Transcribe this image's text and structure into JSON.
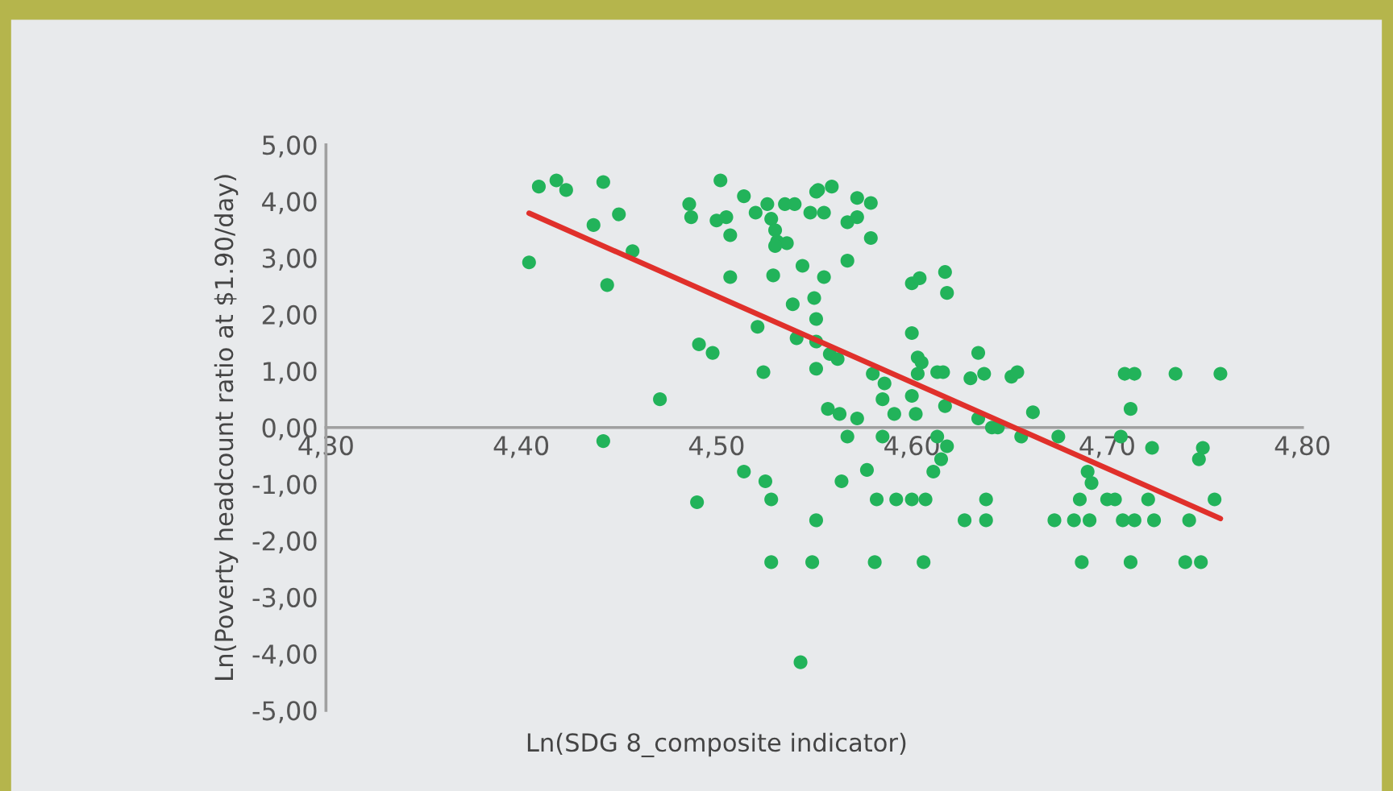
{
  "chart_data": {
    "type": "scatter",
    "xlabel": "Ln(SDG 8_composite indicator)",
    "ylabel": "Ln(Poverty headcount ratio at $1.90/day)",
    "xlim": [
      4.3,
      4.8
    ],
    "ylim": [
      -5,
      5
    ],
    "xticks": [
      {
        "value": 4.3,
        "label": "4,30"
      },
      {
        "value": 4.4,
        "label": "4,40"
      },
      {
        "value": 4.5,
        "label": "4,50"
      },
      {
        "value": 4.6,
        "label": "4,60"
      },
      {
        "value": 4.7,
        "label": "4,70"
      },
      {
        "value": 4.8,
        "label": "4,80"
      }
    ],
    "yticks": [
      {
        "value": -5,
        "label": "-5,00"
      },
      {
        "value": -4,
        "label": "-4,00"
      },
      {
        "value": -3,
        "label": "-3,00"
      },
      {
        "value": -2,
        "label": "-2,00"
      },
      {
        "value": -1,
        "label": "-1,00"
      },
      {
        "value": 0,
        "label": "0,00"
      },
      {
        "value": 1,
        "label": "1,00"
      },
      {
        "value": 2,
        "label": "2,00"
      },
      {
        "value": 3,
        "label": "3,00"
      },
      {
        "value": 4,
        "label": "4,00"
      },
      {
        "value": 5,
        "label": "5,00"
      }
    ],
    "grid": false,
    "legend": false,
    "marker": "circle",
    "series": [
      {
        "color": "#22b35a",
        "x": [
          4.409,
          4.418,
          4.423,
          4.442,
          4.45,
          4.437,
          4.457,
          4.404,
          4.444,
          4.502,
          4.486,
          4.487,
          4.5,
          4.505,
          4.514,
          4.507,
          4.52,
          4.526,
          4.535,
          4.54,
          4.528,
          4.53,
          4.531,
          4.536,
          4.53,
          4.548,
          4.551,
          4.507,
          4.529,
          4.544,
          4.539,
          4.55,
          4.551,
          4.521,
          4.541,
          4.551,
          4.491,
          4.498,
          4.524,
          4.551,
          4.471,
          4.442,
          4.49,
          4.514,
          4.525,
          4.528,
          4.528,
          4.549,
          4.543,
          4.552,
          4.559,
          4.555,
          4.572,
          4.579,
          4.567,
          4.572,
          4.579,
          4.567,
          4.555,
          4.558,
          4.562,
          4.6,
          4.604,
          4.617,
          4.618,
          4.6,
          4.603,
          4.605,
          4.603,
          4.613,
          4.616,
          4.58,
          4.586,
          4.585,
          4.6,
          4.602,
          4.617,
          4.591,
          4.557,
          4.563,
          4.572,
          4.567,
          4.585,
          4.613,
          4.618,
          4.634,
          4.63,
          4.637,
          4.651,
          4.654,
          4.634,
          4.641,
          4.644,
          4.656,
          4.662,
          4.675,
          4.707,
          4.709,
          4.714,
          4.735,
          4.758,
          4.712,
          4.723,
          4.749,
          4.747,
          4.615,
          4.577,
          4.564,
          4.611,
          4.69,
          4.692,
          4.582,
          4.592,
          4.6,
          4.607,
          4.638,
          4.686,
          4.7,
          4.704,
          4.721,
          4.755,
          4.551,
          4.627,
          4.638,
          4.673,
          4.683,
          4.691,
          4.708,
          4.714,
          4.724,
          4.742,
          4.581,
          4.606,
          4.687,
          4.712,
          4.74,
          4.748
        ],
        "values": [
          4.26,
          4.37,
          4.2,
          4.34,
          3.77,
          3.58,
          3.12,
          2.92,
          2.52,
          4.37,
          3.95,
          3.72,
          3.66,
          3.72,
          4.09,
          3.4,
          3.8,
          3.95,
          3.95,
          3.95,
          3.69,
          3.49,
          3.29,
          3.26,
          3.21,
          3.8,
          4.17,
          2.66,
          2.69,
          2.86,
          2.18,
          2.29,
          1.92,
          1.78,
          1.58,
          1.52,
          1.47,
          1.32,
          0.98,
          1.04,
          0.5,
          -0.24,
          -1.32,
          -0.78,
          -0.95,
          -1.27,
          -2.38,
          -2.38,
          -4.15,
          4.2,
          4.26,
          3.8,
          4.06,
          3.97,
          3.63,
          3.72,
          3.35,
          2.95,
          2.66,
          1.3,
          1.21,
          2.55,
          2.64,
          2.75,
          2.38,
          1.67,
          1.24,
          1.15,
          0.95,
          0.98,
          0.98,
          0.95,
          0.78,
          0.5,
          0.56,
          0.24,
          0.38,
          0.24,
          0.33,
          0.24,
          0.16,
          -0.16,
          -0.16,
          -0.16,
          -0.33,
          1.32,
          0.87,
          0.95,
          0.9,
          0.98,
          0.16,
          0.0,
          0.0,
          -0.16,
          0.27,
          -0.16,
          -0.16,
          0.95,
          0.95,
          0.95,
          0.95,
          0.33,
          -0.36,
          -0.36,
          -0.56,
          -0.56,
          -0.75,
          -0.95,
          -0.78,
          -0.78,
          -0.98,
          -1.27,
          -1.27,
          -1.27,
          -1.27,
          -1.27,
          -1.27,
          -1.27,
          -1.27,
          -1.27,
          -1.27,
          -1.64,
          -1.64,
          -1.64,
          -1.64,
          -1.64,
          -1.64,
          -1.64,
          -1.64,
          -1.64,
          -1.64,
          -2.38,
          -2.38,
          -2.38,
          -2.38,
          -2.38,
          -2.38
        ]
      },
      {
        "type": "line",
        "color": "#e0302b",
        "marker": "none",
        "x": [
          4.404,
          4.758
        ],
        "values": [
          3.79,
          -1.61
        ]
      }
    ]
  }
}
